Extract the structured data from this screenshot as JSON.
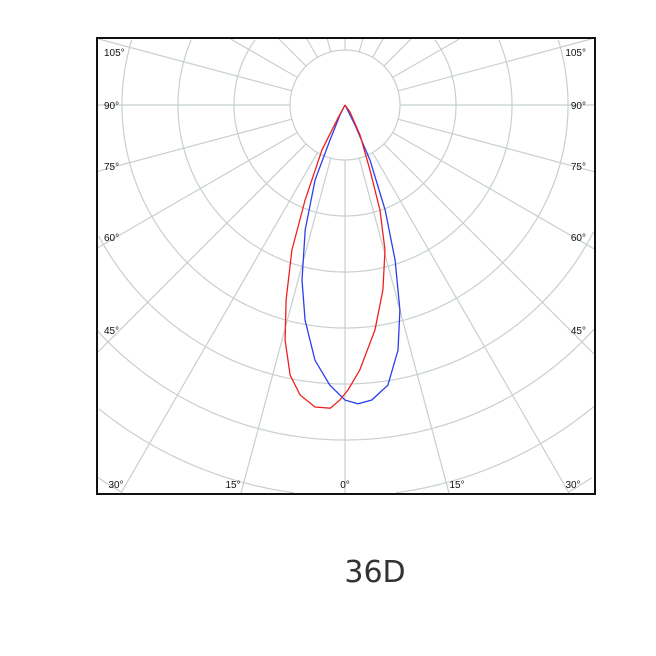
{
  "chart_data": {
    "type": "polar",
    "caption": "36D",
    "angle_labels_left": [
      "105°",
      "90°",
      "75°",
      "60°",
      "45°"
    ],
    "angle_labels_right": [
      "105°",
      "90°",
      "75°",
      "60°",
      "45°"
    ],
    "angle_labels_bottom": [
      "30°",
      "15°",
      "0°",
      "15°",
      "30°"
    ],
    "angle_step_deg": 15,
    "ring_count": 8,
    "grid": true,
    "colors": {
      "grid": "#c8cfcf",
      "frame": "#111111"
    },
    "series": [
      {
        "color": "#2b3fe8",
        "points": [
          [
            0,
            0
          ],
          [
            26.6,
            0.4
          ],
          [
            24.4,
            1.08
          ],
          [
            20.9,
            2.01
          ],
          [
            17.9,
            2.91
          ],
          [
            15.0,
            3.79
          ],
          [
            12.2,
            4.48
          ],
          [
            8.7,
            5.06
          ],
          [
            5.2,
            5.29
          ],
          [
            2.5,
            5.34
          ],
          [
            0,
            5.27
          ],
          [
            -3.1,
            5.01
          ],
          [
            -6.7,
            4.59
          ],
          [
            -10.5,
            3.91
          ],
          [
            -13.8,
            3.22
          ],
          [
            -17.7,
            2.34
          ],
          [
            -21.8,
            1.44
          ],
          [
            -23.2,
            0.68
          ],
          [
            -26.6,
            0.2
          ],
          [
            0,
            0
          ]
        ]
      },
      {
        "color": "#ee2020",
        "points": [
          [
            0,
            0
          ],
          [
            -28.3,
            0.26
          ],
          [
            -27.1,
            0.9
          ],
          [
            -22.8,
            1.84
          ],
          [
            -20.1,
            2.76
          ],
          [
            -16.8,
            3.64
          ],
          [
            -14.3,
            4.33
          ],
          [
            -11.5,
            4.92
          ],
          [
            -8.8,
            5.24
          ],
          [
            -5.7,
            5.42
          ],
          [
            -2.8,
            5.42
          ],
          [
            -1.0,
            5.27
          ],
          [
            0.6,
            5.09
          ],
          [
            3.2,
            4.74
          ],
          [
            7.6,
            4.05
          ],
          [
            11.6,
            3.37
          ],
          [
            15.4,
            2.69
          ],
          [
            18.4,
            1.98
          ],
          [
            21.0,
            1.24
          ],
          [
            26.6,
            0.6
          ],
          [
            35.5,
            0.15
          ],
          [
            0,
            0
          ]
        ]
      }
    ]
  }
}
